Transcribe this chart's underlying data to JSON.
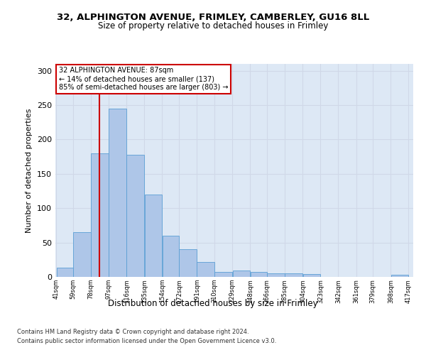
{
  "title1": "32, ALPHINGTON AVENUE, FRIMLEY, CAMBERLEY, GU16 8LL",
  "title2": "Size of property relative to detached houses in Frimley",
  "xlabel": "Distribution of detached houses by size in Frimley",
  "ylabel": "Number of detached properties",
  "footnote1": "Contains HM Land Registry data © Crown copyright and database right 2024.",
  "footnote2": "Contains public sector information licensed under the Open Government Licence v3.0.",
  "annotation_line1": "32 ALPHINGTON AVENUE: 87sqm",
  "annotation_line2": "← 14% of detached houses are smaller (137)",
  "annotation_line3": "85% of semi-detached houses are larger (803) →",
  "bar_left_edges": [
    41,
    59,
    78,
    97,
    116,
    135,
    154,
    172,
    191,
    210,
    229,
    248,
    266,
    285,
    304,
    323,
    342,
    361,
    379,
    398
  ],
  "bar_widths": [
    18,
    19,
    19,
    19,
    19,
    19,
    18,
    19,
    19,
    19,
    19,
    18,
    19,
    19,
    19,
    19,
    19,
    18,
    19,
    19
  ],
  "bar_heights": [
    13,
    65,
    180,
    245,
    178,
    120,
    60,
    40,
    22,
    7,
    9,
    7,
    5,
    5,
    4,
    0,
    0,
    0,
    0,
    3
  ],
  "tick_labels": [
    "41sqm",
    "59sqm",
    "78sqm",
    "97sqm",
    "116sqm",
    "135sqm",
    "154sqm",
    "172sqm",
    "191sqm",
    "210sqm",
    "229sqm",
    "248sqm",
    "266sqm",
    "285sqm",
    "304sqm",
    "323sqm",
    "342sqm",
    "361sqm",
    "379sqm",
    "398sqm",
    "417sqm"
  ],
  "bar_color": "#aec6e8",
  "bar_edge_color": "#5a9fd4",
  "red_line_x": 87,
  "ylim": [
    0,
    310
  ],
  "yticks": [
    0,
    50,
    100,
    150,
    200,
    250,
    300
  ],
  "grid_color": "#d0d8e8",
  "bg_color": "#dde8f5",
  "annotation_box_color": "#ffffff",
  "annotation_box_edge": "#cc0000",
  "red_line_color": "#cc0000",
  "fig_width": 6.0,
  "fig_height": 5.0,
  "fig_dpi": 100
}
